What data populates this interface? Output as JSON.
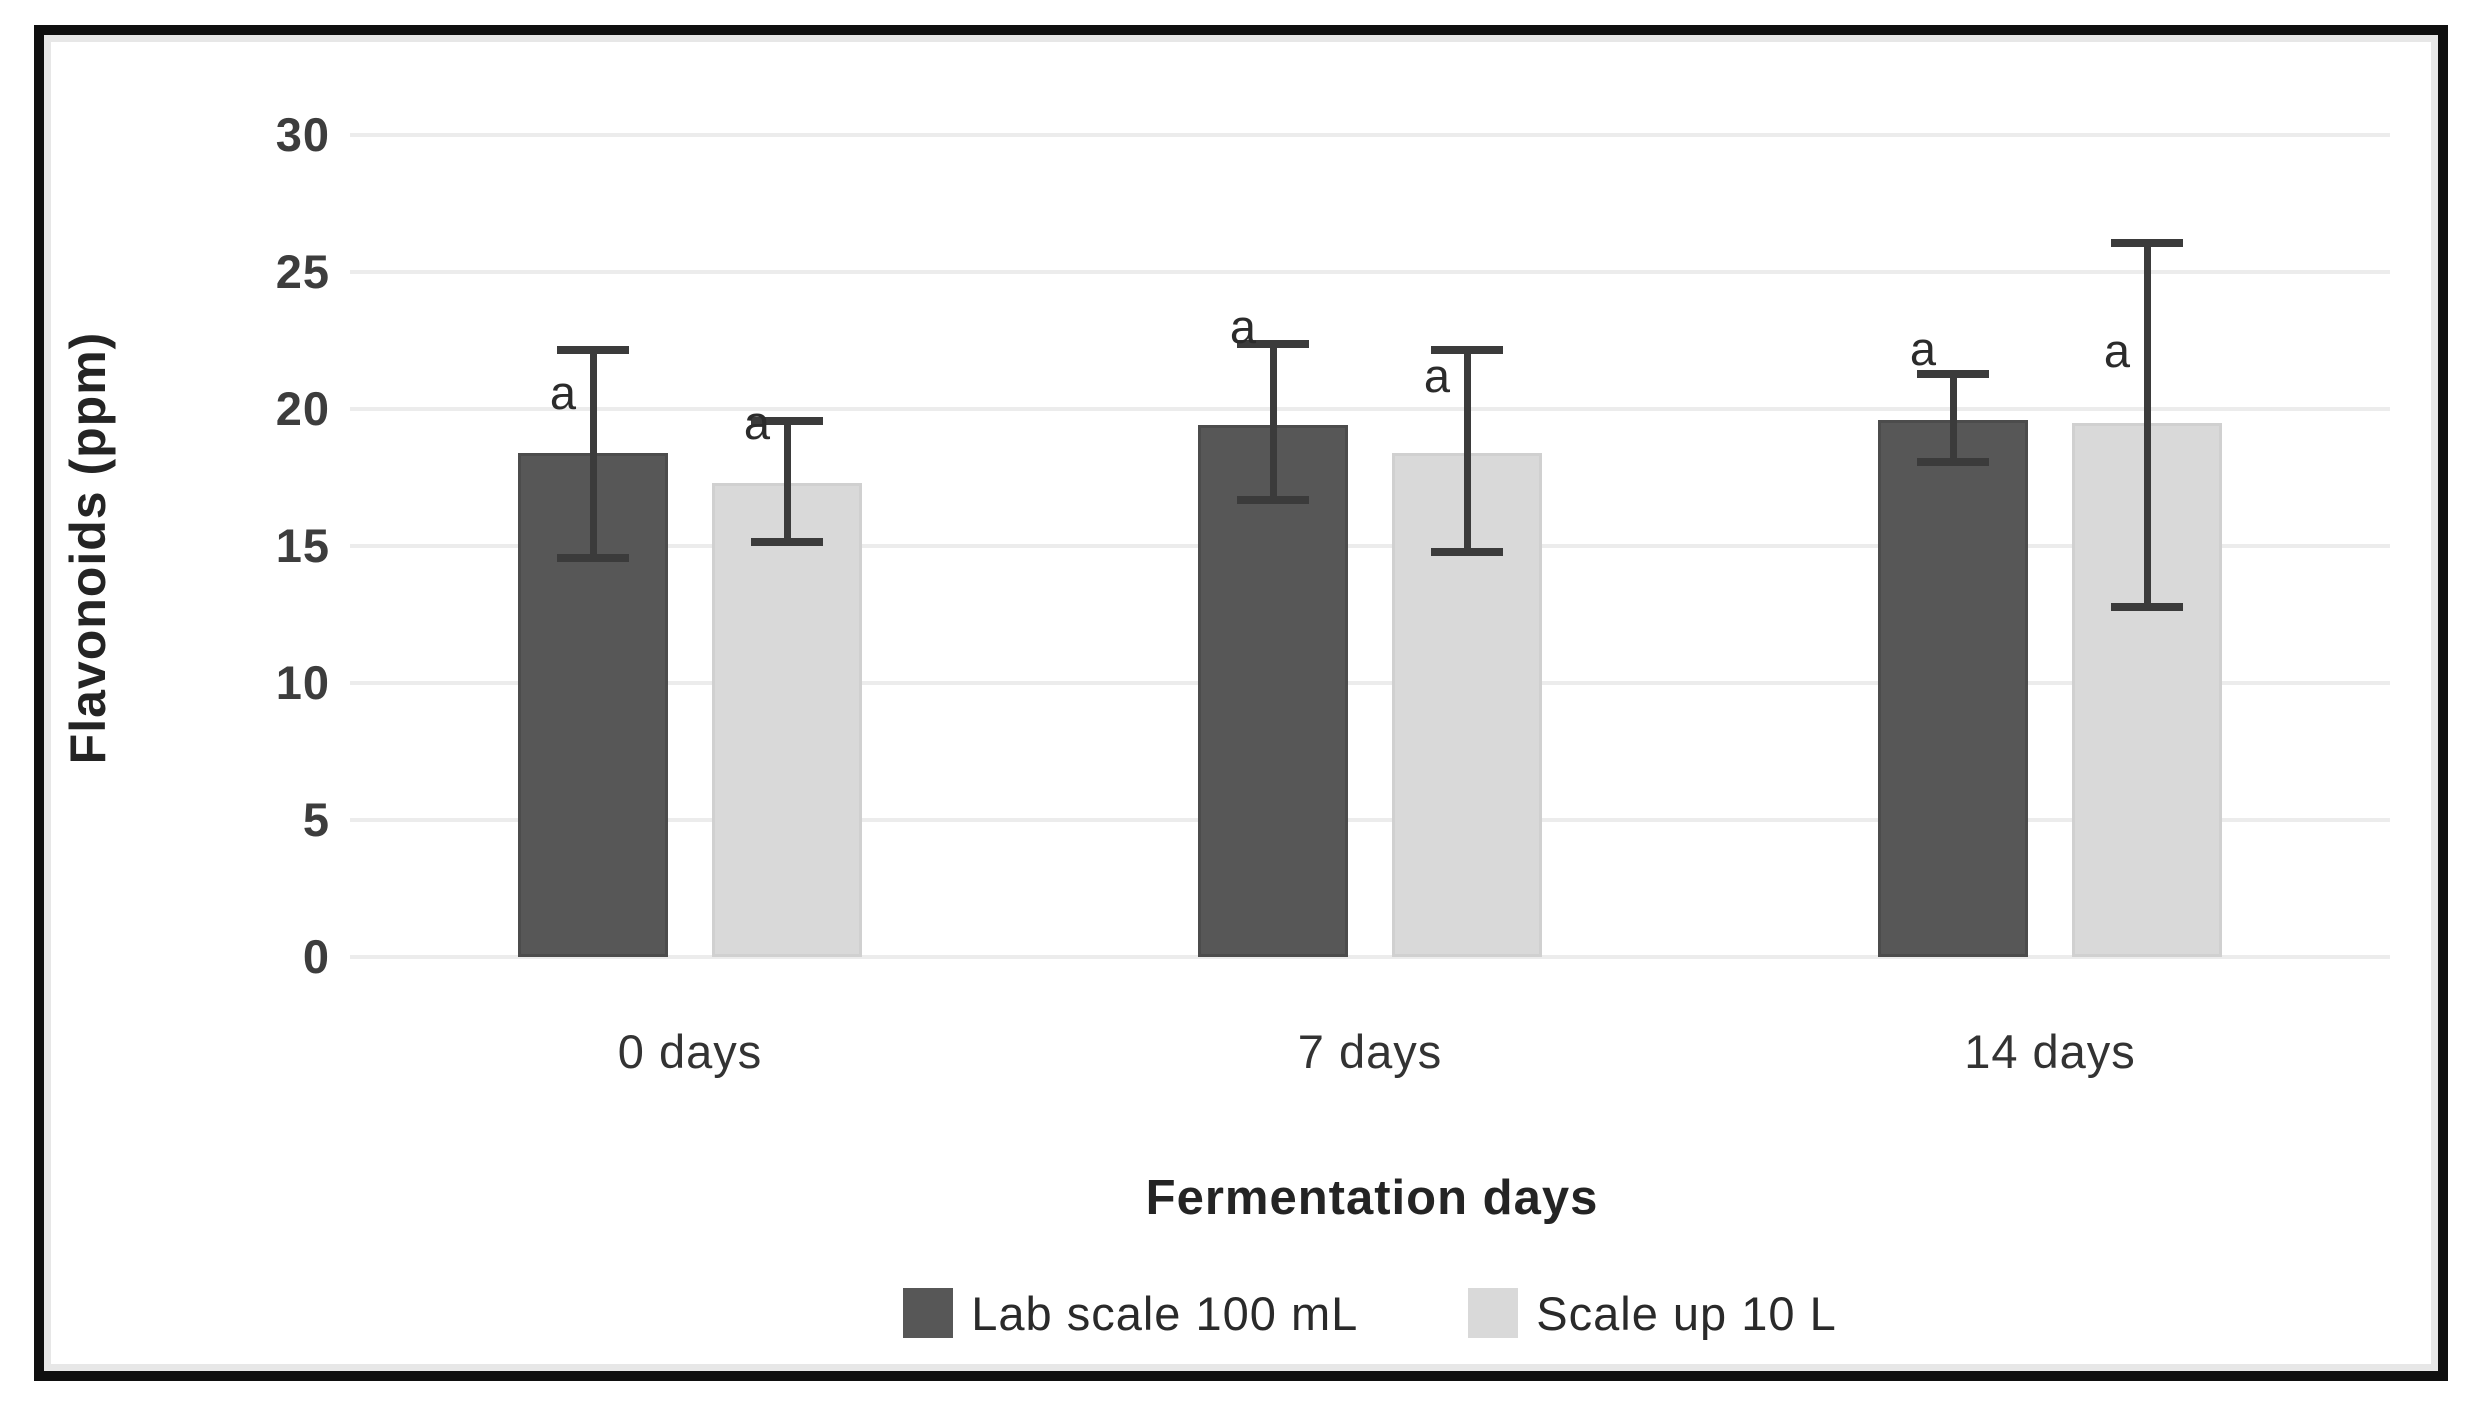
{
  "chart_data": {
    "type": "bar",
    "title": "",
    "categories": [
      "0 days",
      "7 days",
      "14 days"
    ],
    "series": [
      {
        "name": "Lab scale 100 mL",
        "color": "#575757",
        "values": [
          18.4,
          19.4,
          19.6
        ],
        "error_low": [
          14.6,
          16.7,
          18.1
        ],
        "error_high": [
          22.2,
          22.4,
          21.3
        ],
        "sig_labels": [
          "a",
          "a",
          "a"
        ],
        "sig_label_y": [
          20.6,
          23.0,
          22.2
        ]
      },
      {
        "name": "Scale up 10 L",
        "color": "#d9d9d9",
        "values": [
          17.3,
          18.4,
          19.5
        ],
        "error_low": [
          15.2,
          14.8,
          12.8
        ],
        "error_high": [
          19.6,
          22.2,
          26.1
        ],
        "sig_labels": [
          "a",
          "a",
          "a"
        ],
        "sig_label_y": [
          19.5,
          21.2,
          22.1
        ]
      }
    ],
    "xlabel": "Fermentation days",
    "ylabel": "Flavonoids (ppm)",
    "ylim": [
      0,
      30
    ],
    "yticks": [
      30,
      25,
      20,
      15,
      10,
      5,
      0
    ],
    "grid": true,
    "legend_position": "bottom",
    "gridline_color": "#ececec",
    "error_bar_color": "#3b3b3b"
  }
}
